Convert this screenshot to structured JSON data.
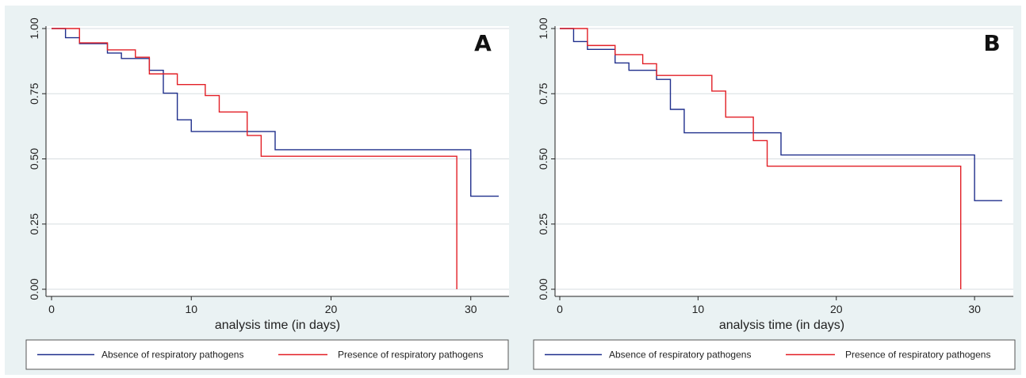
{
  "chart_data": [
    {
      "type": "line",
      "panel_label": "A",
      "xlabel": "analysis time (in days)",
      "ylabel": "",
      "xlim": [
        0,
        32
      ],
      "ylim": [
        0,
        1
      ],
      "xticks": [
        0,
        10,
        20,
        30
      ],
      "xtick_labels": [
        "0",
        "10",
        "20",
        "30"
      ],
      "yticks": [
        0,
        0.25,
        0.5,
        0.75,
        1
      ],
      "ytick_labels": [
        "0.00",
        "0.25",
        "0.50",
        "0.75",
        "1.00"
      ],
      "grid": true,
      "legend_position": "bottom",
      "series": [
        {
          "name": "Absence of respiratory pathogens",
          "color": "#1f2f8c",
          "step": true,
          "x": [
            0,
            1,
            2,
            4,
            5,
            7,
            8,
            9,
            10,
            16,
            30,
            32
          ],
          "y": [
            1.0,
            0.965,
            0.942,
            0.906,
            0.885,
            0.84,
            0.752,
            0.65,
            0.605,
            0.535,
            0.357,
            0.357
          ]
        },
        {
          "name": "Presence of respiratory pathogens",
          "color": "#e21f26",
          "step": true,
          "x": [
            0,
            2,
            4,
            6,
            7,
            9,
            11,
            12,
            14,
            15,
            29,
            29
          ],
          "y": [
            1.0,
            0.945,
            0.918,
            0.89,
            0.826,
            0.785,
            0.743,
            0.68,
            0.59,
            0.51,
            0.51,
            0.0
          ]
        }
      ]
    },
    {
      "type": "line",
      "panel_label": "B",
      "xlabel": "analysis time (in days)",
      "ylabel": "",
      "xlim": [
        0,
        32
      ],
      "ylim": [
        0,
        1
      ],
      "xticks": [
        0,
        10,
        20,
        30
      ],
      "xtick_labels": [
        "0",
        "10",
        "20",
        "30"
      ],
      "yticks": [
        0,
        0.25,
        0.5,
        0.75,
        1
      ],
      "ytick_labels": [
        "0.00",
        "0.25",
        "0.50",
        "0.75",
        "1.00"
      ],
      "grid": true,
      "legend_position": "bottom",
      "series": [
        {
          "name": "Absence of respiratory pathogens",
          "color": "#1f2f8c",
          "step": true,
          "x": [
            0,
            1,
            2,
            4,
            5,
            7,
            8,
            9,
            16,
            30,
            32
          ],
          "y": [
            1.0,
            0.95,
            0.92,
            0.868,
            0.84,
            0.805,
            0.69,
            0.6,
            0.515,
            0.34,
            0.34
          ]
        },
        {
          "name": "Presence of respiratory pathogens",
          "color": "#e21f26",
          "step": true,
          "x": [
            0,
            2,
            4,
            6,
            7,
            11,
            12,
            14,
            15,
            29,
            29
          ],
          "y": [
            1.0,
            0.935,
            0.9,
            0.865,
            0.82,
            0.76,
            0.66,
            0.57,
            0.472,
            0.472,
            0.0
          ]
        }
      ]
    }
  ]
}
